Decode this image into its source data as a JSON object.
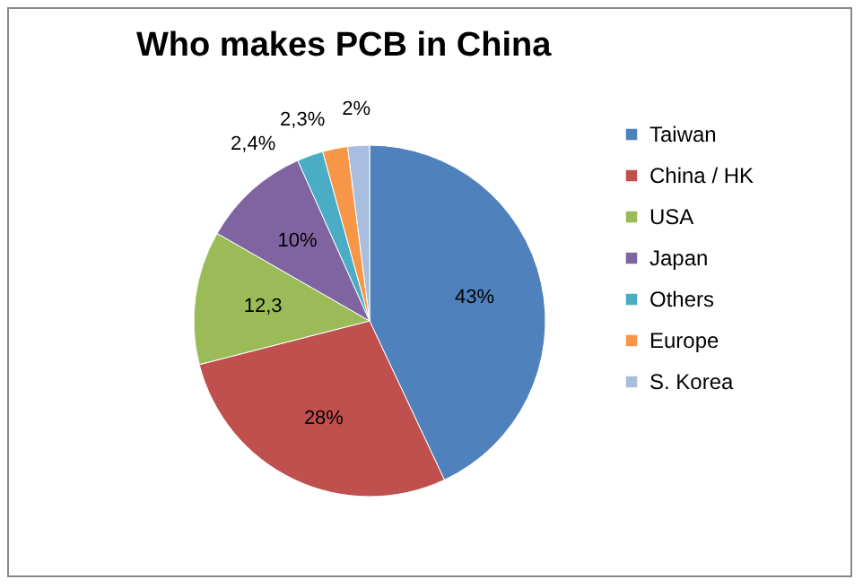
{
  "chart_data": {
    "type": "pie",
    "title": "Who makes PCB in China",
    "categories": [
      "Taiwan",
      "China / HK",
      "USA",
      "Japan",
      "Others",
      "Europe",
      "S. Korea"
    ],
    "values": [
      43,
      28,
      12.3,
      10,
      2.4,
      2.3,
      2
    ],
    "value_labels": [
      "43%",
      "28%",
      "12,3",
      "10%",
      "2,4%",
      "2,3%",
      "2%"
    ],
    "colors": [
      "#4f81bd",
      "#c0504d",
      "#9bbb59",
      "#8064a2",
      "#4bacc6",
      "#f79646",
      "#a9bede"
    ],
    "legend": "right"
  }
}
